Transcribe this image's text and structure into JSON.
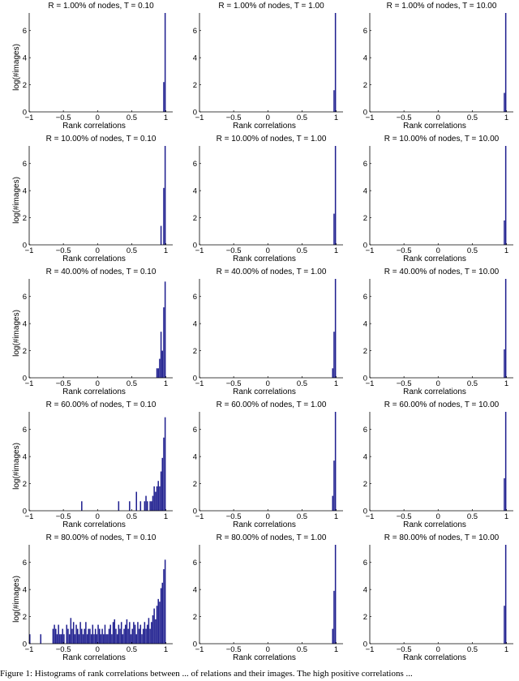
{
  "caption": "Figure 1: Histograms of rank correlations between ... of relations and their images. The high positive correlations ...",
  "chart_data": {
    "type": "bar",
    "layout": "grid 5 rows x 3 columns",
    "bar_color": "#1f1f8f",
    "xlabel": "Rank correlations",
    "ylabel": "log(#images)",
    "xlim": [
      -1,
      1.1
    ],
    "ylim": [
      0,
      7.3
    ],
    "xticks": [
      -1,
      -0.5,
      0,
      0.5,
      1
    ],
    "xtick_labels": [
      "−1",
      "−0.5",
      "0",
      "0.5",
      "1"
    ],
    "yticks": [
      0,
      2,
      4,
      6
    ],
    "ytick_labels": [
      "0",
      "2",
      "4",
      "6"
    ],
    "grid": false,
    "bin_width": 0.02,
    "panels": [
      {
        "title": "R = 1.00% of nodes, T = 0.10",
        "x": [
          0.97,
          0.99
        ],
        "y": [
          2.2,
          7.3
        ]
      },
      {
        "title": "R = 1.00% of nodes, T = 1.00",
        "x": [
          0.97,
          0.99
        ],
        "y": [
          1.6,
          7.3
        ]
      },
      {
        "title": "R = 1.00% of nodes, T = 10.00",
        "x": [
          0.97,
          0.99
        ],
        "y": [
          1.4,
          7.3
        ]
      },
      {
        "title": "R = 10.00% of nodes, T = 0.10",
        "x": [
          0.93,
          0.97,
          0.99
        ],
        "y": [
          1.4,
          4.2,
          7.3
        ]
      },
      {
        "title": "R = 10.00% of nodes, T = 1.00",
        "x": [
          0.97,
          0.99
        ],
        "y": [
          2.3,
          7.3
        ]
      },
      {
        "title": "R = 10.00% of nodes, T = 10.00",
        "x": [
          0.97,
          0.99
        ],
        "y": [
          1.8,
          7.3
        ]
      },
      {
        "title": "R = 40.00% of nodes, T = 0.10",
        "x": [
          0.87,
          0.89,
          0.91,
          0.93,
          0.95,
          0.97,
          0.99
        ],
        "y": [
          0.7,
          0.7,
          1.4,
          3.4,
          2.0,
          5.2,
          7.1
        ]
      },
      {
        "title": "R = 40.00% of nodes, T = 1.00",
        "x": [
          0.95,
          0.97,
          0.99
        ],
        "y": [
          0.7,
          3.4,
          7.3
        ]
      },
      {
        "title": "R = 40.00% of nodes, T = 10.00",
        "x": [
          0.97,
          0.99
        ],
        "y": [
          2.1,
          7.3
        ]
      },
      {
        "title": "R = 60.00% of nodes, T = 0.10",
        "x": [
          -0.23,
          0.31,
          0.47,
          0.57,
          0.63,
          0.69,
          0.71,
          0.73,
          0.77,
          0.79,
          0.81,
          0.83,
          0.85,
          0.87,
          0.89,
          0.91,
          0.93,
          0.95,
          0.97,
          0.99
        ],
        "y": [
          0.7,
          0.7,
          0.7,
          1.4,
          0.7,
          0.7,
          1.1,
          0.7,
          0.7,
          0.7,
          1.1,
          1.8,
          1.4,
          1.8,
          2.2,
          1.8,
          2.9,
          3.9,
          5.4,
          6.9
        ]
      },
      {
        "title": "R = 60.00% of nodes, T = 1.00",
        "x": [
          0.95,
          0.97,
          0.99
        ],
        "y": [
          1.1,
          3.7,
          7.3
        ]
      },
      {
        "title": "R = 60.00% of nodes, T = 10.00",
        "x": [
          0.97,
          0.99
        ],
        "y": [
          2.4,
          7.3
        ]
      },
      {
        "title": "R = 80.00% of nodes, T = 0.10",
        "x": [
          -0.99,
          -0.83,
          -0.65,
          -0.63,
          -0.61,
          -0.59,
          -0.57,
          -0.55,
          -0.53,
          -0.51,
          -0.49,
          -0.45,
          -0.43,
          -0.41,
          -0.39,
          -0.37,
          -0.35,
          -0.33,
          -0.31,
          -0.29,
          -0.27,
          -0.25,
          -0.23,
          -0.21,
          -0.19,
          -0.17,
          -0.15,
          -0.13,
          -0.11,
          -0.09,
          -0.07,
          -0.05,
          -0.03,
          -0.01,
          0.01,
          0.03,
          0.05,
          0.07,
          0.09,
          0.11,
          0.13,
          0.15,
          0.17,
          0.19,
          0.21,
          0.23,
          0.25,
          0.27,
          0.29,
          0.31,
          0.33,
          0.35,
          0.37,
          0.39,
          0.41,
          0.43,
          0.45,
          0.47,
          0.49,
          0.51,
          0.53,
          0.55,
          0.57,
          0.59,
          0.61,
          0.63,
          0.65,
          0.67,
          0.69,
          0.71,
          0.73,
          0.75,
          0.77,
          0.79,
          0.81,
          0.83,
          0.85,
          0.87,
          0.89,
          0.91,
          0.93,
          0.95,
          0.97,
          0.99
        ],
        "y": [
          0.7,
          0.7,
          1.1,
          1.4,
          1.1,
          0.7,
          1.4,
          0.7,
          0.7,
          1.1,
          0.7,
          1.4,
          1.1,
          0.7,
          1.9,
          1.1,
          1.6,
          0.7,
          1.4,
          1.1,
          0.7,
          1.6,
          1.1,
          0.7,
          1.1,
          1.6,
          0.7,
          1.1,
          1.1,
          0.7,
          1.4,
          0.7,
          1.1,
          0.7,
          1.4,
          1.1,
          0.7,
          1.1,
          0.7,
          1.4,
          0.7,
          0.7,
          1.1,
          1.4,
          0.7,
          1.6,
          1.8,
          1.1,
          0.7,
          1.4,
          1.1,
          1.6,
          0.7,
          1.1,
          1.4,
          1.8,
          1.1,
          1.6,
          0.7,
          1.1,
          1.6,
          1.4,
          0.7,
          1.6,
          1.1,
          1.4,
          0.7,
          1.1,
          1.6,
          1.1,
          1.4,
          1.9,
          1.1,
          1.6,
          2.1,
          2.6,
          1.8,
          2.8,
          3.3,
          3.1,
          4.1,
          4.5,
          5.5,
          6.2
        ]
      },
      {
        "title": "R = 80.00% of nodes, T = 1.00",
        "x": [
          0.95,
          0.97,
          0.99
        ],
        "y": [
          1.1,
          3.9,
          7.3
        ]
      },
      {
        "title": "R = 80.00% of nodes, T = 10.00",
        "x": [
          0.97,
          0.99
        ],
        "y": [
          2.8,
          7.3
        ]
      }
    ]
  }
}
